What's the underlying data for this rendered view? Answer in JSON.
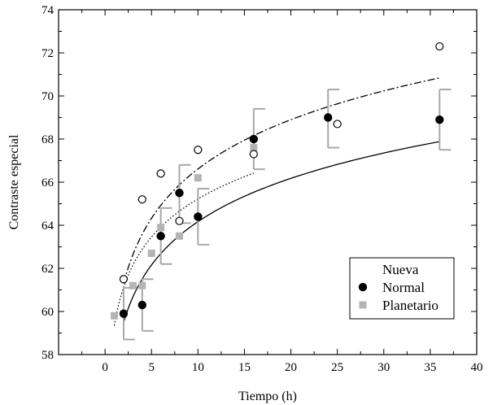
{
  "chart_data": {
    "type": "scatter",
    "xlabel": "Tiempo (h)",
    "ylabel": "Contraste especial",
    "xlim": [
      -5,
      40
    ],
    "ylim": [
      58,
      74
    ],
    "xticks": [
      0,
      5,
      10,
      15,
      20,
      25,
      30,
      35,
      40
    ],
    "yticks": [
      58,
      60,
      62,
      64,
      66,
      68,
      70,
      72,
      74
    ],
    "grid": false,
    "legend_position": "lower-right",
    "series": [
      {
        "name": "Nueva",
        "marker": "open-circle",
        "color": "#000000",
        "points": [
          [
            2,
            61.5
          ],
          [
            4,
            65.2
          ],
          [
            6,
            66.4
          ],
          [
            8,
            64.2
          ],
          [
            10,
            67.5
          ],
          [
            16,
            67.3
          ],
          [
            25,
            68.7
          ],
          [
            36,
            72.3
          ]
        ]
      },
      {
        "name": "Normal",
        "marker": "filled-circle",
        "color": "#000000",
        "points": [
          [
            2,
            59.9
          ],
          [
            4,
            60.3
          ],
          [
            6,
            63.5
          ],
          [
            8,
            65.5
          ],
          [
            10,
            64.4
          ],
          [
            16,
            68.0
          ],
          [
            24,
            69.0
          ],
          [
            36,
            68.9
          ]
        ],
        "error_bars": [
          [
            2,
            58.7,
            61.1
          ],
          [
            4,
            59.1,
            61.5
          ],
          [
            6,
            62.2,
            64.8
          ],
          [
            8,
            64.1,
            66.8
          ],
          [
            10,
            63.1,
            65.7
          ],
          [
            16,
            66.6,
            69.4
          ],
          [
            24,
            67.6,
            70.3
          ],
          [
            36,
            67.5,
            70.3
          ]
        ]
      },
      {
        "name": "Planetario",
        "marker": "filled-square",
        "color": "#b4b4b4",
        "points": [
          [
            1,
            59.8
          ],
          [
            3,
            61.2
          ],
          [
            4,
            61.2
          ],
          [
            5,
            62.7
          ],
          [
            6,
            63.9
          ],
          [
            8,
            63.5
          ],
          [
            10,
            66.2
          ],
          [
            16,
            67.6
          ]
        ]
      }
    ],
    "fits": [
      {
        "style": "solid",
        "color": "#000000",
        "x_range": [
          2,
          36
        ],
        "coefficients": [
          59.5,
          2.9
        ],
        "form": "a+b*ln(x/2)"
      },
      {
        "style": "dash-dot",
        "color": "#000000",
        "x_range": [
          2,
          36
        ],
        "coefficients": [
          61.3,
          3.3
        ],
        "form": "a+b*ln(x/2)"
      },
      {
        "style": "dotted",
        "color": "#000000",
        "x_range": [
          1,
          16
        ],
        "coefficients": [
          59.35,
          2.55
        ],
        "form": "a+b*ln(x)"
      }
    ]
  }
}
